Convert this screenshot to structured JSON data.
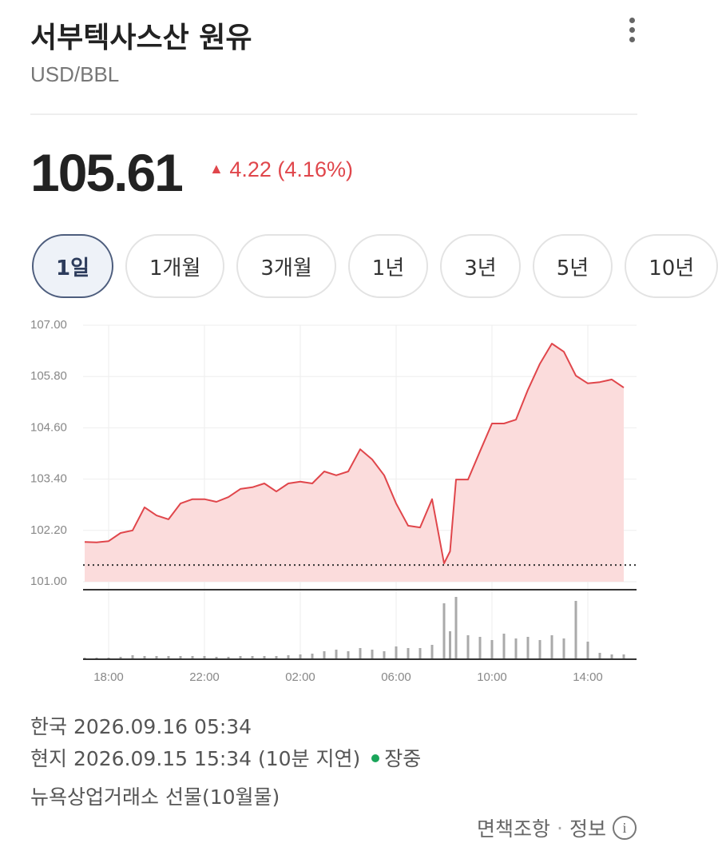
{
  "header": {
    "title": "서부텍사스산 원유",
    "subtitle": "USD/BBL"
  },
  "quote": {
    "price": "105.61",
    "change": "4.22",
    "change_pct": "(4.16%)"
  },
  "tabs": [
    "1일",
    "1개월",
    "3개월",
    "1년",
    "3년",
    "5년",
    "10년"
  ],
  "chart_data": {
    "type": "line",
    "color": "#e0464b",
    "fill": "#fbdcdc",
    "x": [
      "17:00",
      "17:30",
      "18:00",
      "18:30",
      "19:00",
      "19:30",
      "20:00",
      "20:30",
      "21:00",
      "21:30",
      "22:00",
      "22:30",
      "23:00",
      "23:30",
      "00:00",
      "00:30",
      "01:00",
      "01:30",
      "02:00",
      "02:30",
      "03:00",
      "03:30",
      "04:00",
      "04:30",
      "05:00",
      "05:30",
      "06:00",
      "06:30",
      "07:00",
      "07:30",
      "08:00",
      "08:15",
      "08:30",
      "09:00",
      "09:30",
      "10:00",
      "10:30",
      "11:00",
      "11:30",
      "12:00",
      "12:30",
      "13:00",
      "13:30",
      "14:00",
      "14:30",
      "15:00",
      "15:30"
    ],
    "values": [
      101.93,
      101.92,
      101.95,
      102.14,
      102.2,
      102.74,
      102.55,
      102.46,
      102.83,
      102.93,
      102.93,
      102.87,
      102.98,
      103.17,
      103.21,
      103.3,
      103.11,
      103.3,
      103.34,
      103.3,
      103.58,
      103.49,
      103.58,
      104.1,
      103.86,
      103.49,
      102.83,
      102.31,
      102.27,
      102.93,
      101.43,
      101.71,
      103.39,
      103.39,
      104.05,
      104.7,
      104.7,
      104.79,
      105.49,
      106.1,
      106.57,
      106.38,
      105.82,
      105.64,
      105.67,
      105.73,
      105.54
    ],
    "volume": [
      2,
      2,
      2,
      3,
      5,
      4,
      4,
      4,
      4,
      4,
      4,
      3,
      3,
      4,
      4,
      4,
      4,
      5,
      6,
      7,
      10,
      12,
      10,
      14,
      12,
      10,
      16,
      14,
      14,
      18,
      70,
      35,
      78,
      30,
      28,
      24,
      32,
      26,
      28,
      24,
      30,
      26,
      73,
      22,
      8,
      6,
      6
    ],
    "volume_lim": [
      0,
      80
    ],
    "volume_color": "#aaaaaa",
    "prev_close": 101.39,
    "xlim": [
      "16:56",
      "16:02"
    ],
    "xticks": [
      "18:00",
      "22:00",
      "02:00",
      "06:00",
      "10:00",
      "14:00"
    ],
    "ylim": [
      101,
      107
    ],
    "yticks": [
      {
        "value": 101,
        "label": "101.00"
      },
      {
        "value": 102.2,
        "label": "102.20"
      },
      {
        "value": 103.4,
        "label": "103.40"
      },
      {
        "value": 104.6,
        "label": "104.60"
      },
      {
        "value": 105.8,
        "label": "105.80"
      },
      {
        "value": 107,
        "label": "107.00"
      }
    ],
    "grid": true
  },
  "info": {
    "korea": "한국 2026.09.16 05:34",
    "local": "현지 2026.09.15 15:34 (10분 지연)",
    "status": "장중",
    "exchange": "뉴욕상업거래소 선물(10월물)"
  },
  "footer": {
    "disclaimer": "면책조항",
    "info": "정보"
  }
}
